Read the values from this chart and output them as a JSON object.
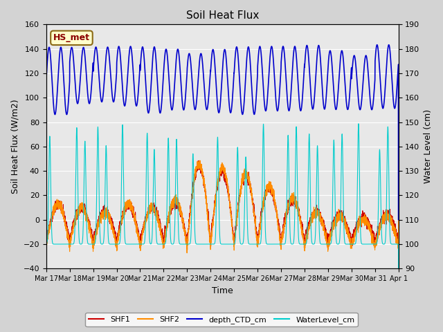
{
  "title": "Soil Heat Flux",
  "xlabel": "Time",
  "ylabel_left": "Soil Heat Flux (W/m2)",
  "ylabel_right": "Water Level (cm)",
  "ylim_left": [
    -40,
    160
  ],
  "ylim_right": [
    90,
    190
  ],
  "background_color": "#d3d3d3",
  "plot_bg_color": "#e8e8e8",
  "annotation_text": "HS_met",
  "annotation_bg": "#ffffcc",
  "annotation_border": "#8b6914",
  "annotation_text_color": "#8b0000",
  "grid_color": "#ffffff",
  "shf1_color": "#cc0000",
  "shf2_color": "#ff8c00",
  "depth_color": "#0000cc",
  "water_color": "#00cccc",
  "xtick_labels": [
    "Mar 17",
    "Mar 18",
    "Mar 19",
    "Mar 20",
    "Mar 21",
    "Mar 22",
    "Mar 23",
    "Mar 24",
    "Mar 25",
    "Mar 26",
    "Mar 27",
    "Mar 28",
    "Mar 29",
    "Mar 30",
    "Mar 31",
    "Apr 1"
  ],
  "n_days": 15,
  "points_per_day": 288
}
